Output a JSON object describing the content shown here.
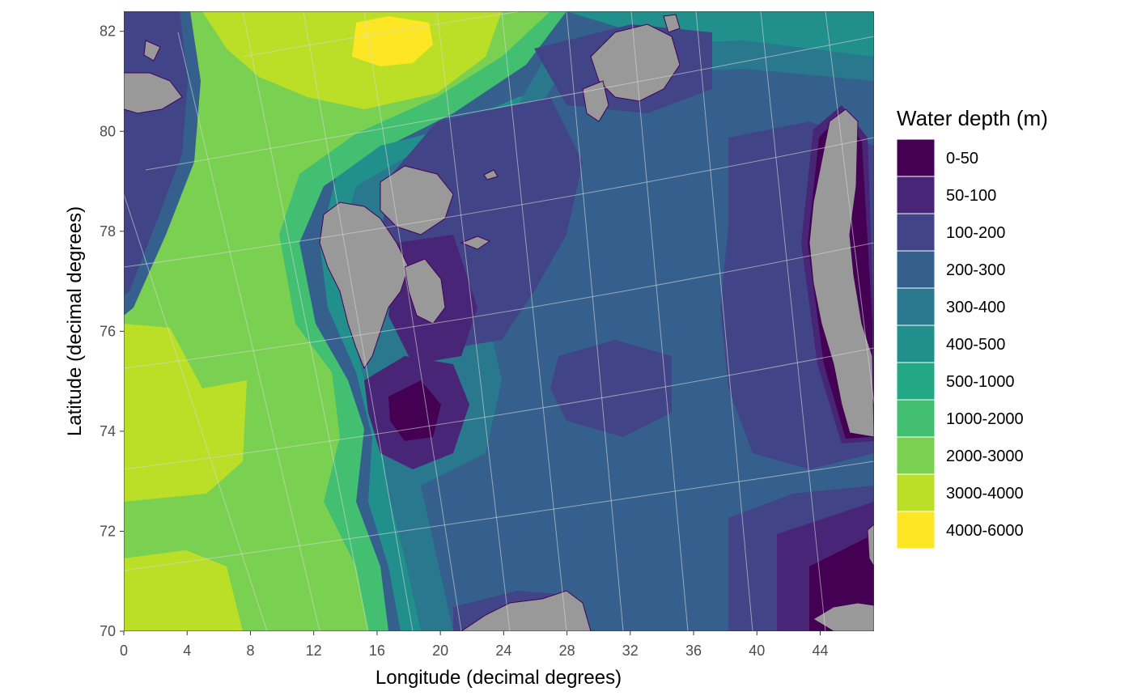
{
  "map": {
    "x_axis": {
      "title": "Longitude (decimal degrees)",
      "range": [
        0,
        47.4
      ],
      "ticks": [
        0,
        4,
        8,
        12,
        16,
        20,
        24,
        28,
        32,
        36,
        40,
        44
      ]
    },
    "y_axis": {
      "title": "Latitude (decimal degrees)",
      "range": [
        70,
        82.4
      ],
      "ticks": [
        70,
        72,
        74,
        76,
        78,
        80,
        82
      ]
    },
    "legend": {
      "title": "Water depth (m)",
      "placement": "right",
      "items": [
        {
          "label": "0-50",
          "color": "#440154"
        },
        {
          "label": "50-100",
          "color": "#482576"
        },
        {
          "label": "100-200",
          "color": "#414487"
        },
        {
          "label": "200-300",
          "color": "#35608D"
        },
        {
          "label": "300-400",
          "color": "#2A788E"
        },
        {
          "label": "400-500",
          "color": "#21908C"
        },
        {
          "label": "500-1000",
          "color": "#22A884"
        },
        {
          "label": "1000-2000",
          "color": "#43BF71"
        },
        {
          "label": "2000-3000",
          "color": "#7AD151"
        },
        {
          "label": "3000-4000",
          "color": "#BBDF27"
        },
        {
          "label": "4000-6000",
          "color": "#FDE725"
        }
      ]
    },
    "land_color": "#999999",
    "graticule": true
  }
}
